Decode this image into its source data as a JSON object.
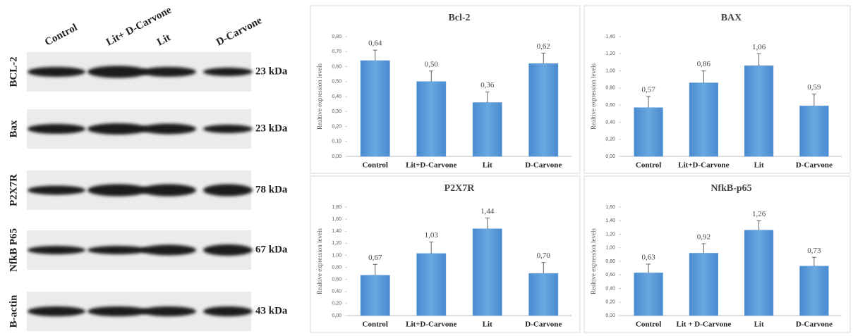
{
  "blot": {
    "lanes": [
      "Control",
      "Lit+ D-Carvone",
      "Lit",
      "D-Carvone"
    ],
    "rows": [
      {
        "label": "BCL-2",
        "size": "23 kDa"
      },
      {
        "label": "Bax",
        "size": "23 kDa"
      },
      {
        "label": "P2X7R",
        "size": "78 kDa"
      },
      {
        "label": "NfkB P65",
        "size": "67 kDa"
      },
      {
        "label": "B-actin",
        "size": "43 kDa"
      }
    ]
  },
  "chart_data": [
    {
      "type": "bar",
      "title": "Bcl-2",
      "y_label": "Realtive expression levels",
      "categories": [
        "Control",
        "Lit+D-Carvone",
        "Lit",
        "D-Carvone"
      ],
      "values": [
        0.64,
        0.5,
        0.36,
        0.62
      ],
      "value_labels": [
        "0,64",
        "0,50",
        "0,36",
        "0,62"
      ],
      "errors": [
        0.07,
        0.07,
        0.07,
        0.07
      ],
      "color": "#5b9bd5",
      "ylim": [
        0,
        0.8
      ],
      "yticks": [
        {
          "value": 0,
          "label": "0,00"
        },
        {
          "value": 0.1,
          "label": "0,10"
        },
        {
          "value": 0.2,
          "label": "0,20"
        },
        {
          "value": 0.3,
          "label": "0,30"
        },
        {
          "value": 0.4,
          "label": "0,40"
        },
        {
          "value": 0.5,
          "label": "0,50"
        },
        {
          "value": 0.6,
          "label": "0,60"
        },
        {
          "value": 0.7,
          "label": "0,70"
        },
        {
          "value": 0.8,
          "label": "0,80"
        }
      ]
    },
    {
      "type": "bar",
      "title": "BAX",
      "y_label": "Realtive expression levels",
      "categories": [
        "Control",
        "Lit+D-Carvone",
        "Lit",
        "D-Carvone"
      ],
      "values": [
        0.57,
        0.86,
        1.06,
        0.59
      ],
      "value_labels": [
        "0,57",
        "0,86",
        "1,06",
        "0,59"
      ],
      "errors": [
        0.13,
        0.14,
        0.14,
        0.14
      ],
      "color": "#5b9bd5",
      "ylim": [
        0,
        1.4
      ],
      "yticks": [
        {
          "value": 0,
          "label": "0,00"
        },
        {
          "value": 0.2,
          "label": "0,20"
        },
        {
          "value": 0.4,
          "label": "0,40"
        },
        {
          "value": 0.6,
          "label": "0,60"
        },
        {
          "value": 0.8,
          "label": "0,80"
        },
        {
          "value": 1.0,
          "label": "1,00"
        },
        {
          "value": 1.2,
          "label": "1,20"
        },
        {
          "value": 1.4,
          "label": "1,40"
        }
      ]
    },
    {
      "type": "bar",
      "title": "P2X7R",
      "y_label": "Realtive expression levels",
      "categories": [
        "Control",
        "Lit+D-Carvone",
        "Lit",
        "D-Carvone"
      ],
      "values": [
        0.67,
        1.03,
        1.44,
        0.7
      ],
      "value_labels": [
        "0,67",
        "1,03",
        "1,44",
        "0,70"
      ],
      "errors": [
        0.18,
        0.19,
        0.18,
        0.18
      ],
      "color": "#5b9bd5",
      "ylim": [
        0,
        1.8
      ],
      "yticks": [
        {
          "value": 0,
          "label": "0,00"
        },
        {
          "value": 0.2,
          "label": "0,20"
        },
        {
          "value": 0.4,
          "label": "0,40"
        },
        {
          "value": 0.6,
          "label": "0,60"
        },
        {
          "value": 0.8,
          "label": "0,80"
        },
        {
          "value": 1.0,
          "label": "1,00"
        },
        {
          "value": 1.2,
          "label": "1,20"
        },
        {
          "value": 1.4,
          "label": "1,40"
        },
        {
          "value": 1.6,
          "label": "1,60"
        },
        {
          "value": 1.8,
          "label": "1,80"
        }
      ]
    },
    {
      "type": "bar",
      "title": "NfkB-p65",
      "y_label": "Realtive expression levels",
      "categories": [
        "Control",
        "Lit + D-Carvone",
        "Lit",
        "D-Carvone"
      ],
      "values": [
        0.63,
        0.92,
        1.26,
        0.73
      ],
      "value_labels": [
        "0,63",
        "0,92",
        "1,26",
        "0,73"
      ],
      "errors": [
        0.13,
        0.14,
        0.14,
        0.13
      ],
      "color": "#5b9bd5",
      "ylim": [
        0,
        1.6
      ],
      "yticks": [
        {
          "value": 0,
          "label": "0,00"
        },
        {
          "value": 0.2,
          "label": "0,20"
        },
        {
          "value": 0.4,
          "label": "0,40"
        },
        {
          "value": 0.6,
          "label": "0,60"
        },
        {
          "value": 0.8,
          "label": "0,80"
        },
        {
          "value": 1.0,
          "label": "1,00"
        },
        {
          "value": 1.2,
          "label": "1,20"
        },
        {
          "value": 1.4,
          "label": "1,40"
        },
        {
          "value": 1.6,
          "label": "1,60"
        }
      ]
    }
  ]
}
